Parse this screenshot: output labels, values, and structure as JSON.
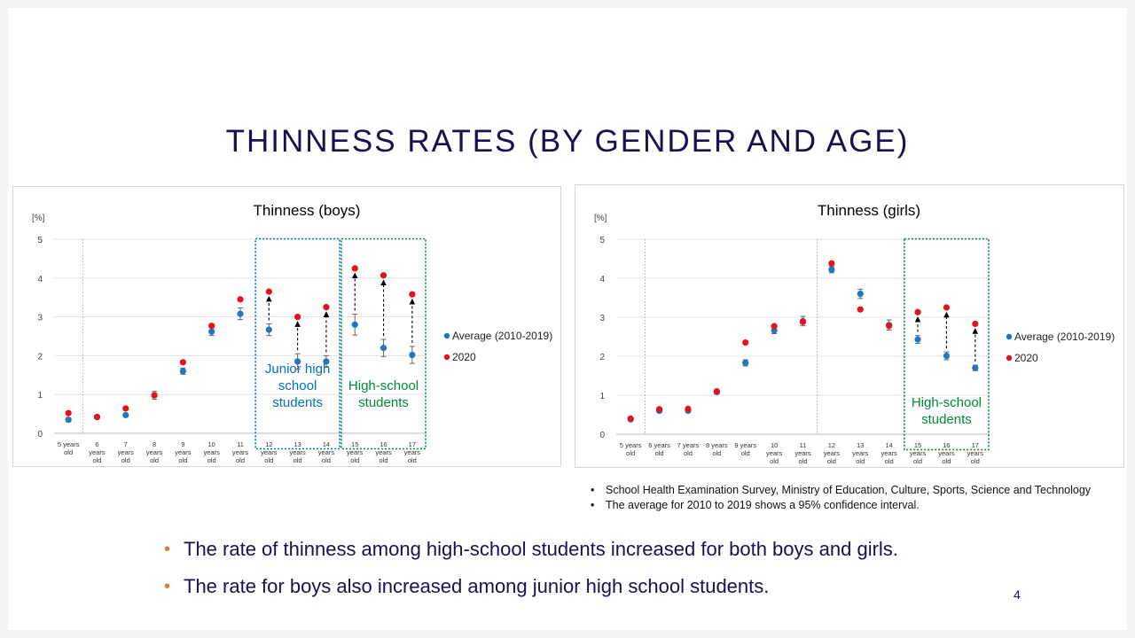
{
  "slide": {
    "title": "THINNESS RATES (BY GENDER AND AGE)",
    "notes": [
      "School Health Examination Survey, Ministry of Education, Culture, Sports, Science and Technology",
      "The average for 2010 to 2019 shows a 95% confidence interval."
    ],
    "bullets": [
      "The rate of thinness among high-school students increased for both boys and girls.",
      "The rate for boys also increased among junior high school students."
    ],
    "page_number": "4",
    "colors": {
      "title": "#1a1050",
      "average": "#1f77c4",
      "y2020": "#e8101a",
      "junior_box": "#0070c0",
      "high_box": "#00883a",
      "bullet": "#e07b39"
    }
  },
  "chart_data": [
    {
      "type": "scatter",
      "title": "Thinness (boys)",
      "ylabel": "[%]",
      "ylim": [
        0,
        5
      ],
      "yticks": [
        "0",
        "1",
        "2",
        "3",
        "4",
        "5"
      ],
      "categories": [
        [
          "5 years",
          "old"
        ],
        [
          "6",
          "years",
          "old"
        ],
        [
          "7",
          "years",
          "old"
        ],
        [
          "8",
          "years",
          "old"
        ],
        [
          "9",
          "years",
          "old"
        ],
        [
          "10",
          "years",
          "old"
        ],
        [
          "11",
          "years",
          "old"
        ],
        [
          "12",
          "years",
          "old"
        ],
        [
          "13",
          "years",
          "old"
        ],
        [
          "14",
          "years",
          "old"
        ],
        [
          "15",
          "years",
          "old"
        ],
        [
          "16",
          "years",
          "old"
        ],
        [
          "17",
          "years",
          "old"
        ]
      ],
      "series": [
        {
          "name": "Average (2010-2019)",
          "color": "#1f77c4",
          "values": [
            0.35,
            0.42,
            0.47,
            0.98,
            1.6,
            2.62,
            3.08,
            2.67,
            1.85,
            1.85,
            2.8,
            2.2,
            2.02
          ],
          "ci": [
            0.05,
            0.04,
            0.04,
            0.1,
            0.08,
            0.1,
            0.15,
            0.15,
            0.2,
            0.15,
            0.27,
            0.22,
            0.22
          ]
        },
        {
          "name": "2020",
          "color": "#e8101a",
          "values": [
            0.52,
            0.42,
            0.64,
            0.98,
            1.83,
            2.77,
            3.45,
            3.65,
            3.0,
            3.25,
            4.25,
            4.07,
            3.58
          ]
        }
      ],
      "arrows": [
        7,
        8,
        9,
        10,
        11,
        12
      ],
      "boxes": [
        {
          "label": [
            "Junior high",
            "school",
            "students"
          ],
          "from": 7,
          "to": 9,
          "color": "#0070c0"
        },
        {
          "label": [
            "High-school",
            "students"
          ],
          "from": 10,
          "to": 12,
          "color": "#00883a"
        }
      ],
      "divider_after": 0,
      "legend": "right"
    },
    {
      "type": "scatter",
      "title": "Thinness (girls)",
      "ylabel": "[%]",
      "ylim": [
        0,
        5
      ],
      "yticks": [
        "0",
        "1",
        "2",
        "3",
        "4",
        "5"
      ],
      "categories": [
        [
          "5 years",
          "old"
        ],
        [
          "6 years",
          "old"
        ],
        [
          "7 years",
          "old"
        ],
        [
          "8 years",
          "old"
        ],
        [
          "9 years",
          "old"
        ],
        [
          "10",
          "years",
          "old"
        ],
        [
          "11",
          "years",
          "old"
        ],
        [
          "12",
          "years",
          "old"
        ],
        [
          "13",
          "years",
          "old"
        ],
        [
          "14",
          "years",
          "old"
        ],
        [
          "15",
          "years",
          "old"
        ],
        [
          "16",
          "years",
          "old"
        ],
        [
          "17",
          "years",
          "old"
        ]
      ],
      "series": [
        {
          "name": "Average (2010-2019)",
          "color": "#1f77c4",
          "values": [
            0.38,
            0.6,
            0.6,
            1.08,
            1.83,
            2.66,
            2.9,
            4.22,
            3.6,
            2.8,
            2.43,
            2.01,
            1.7
          ],
          "ci": [
            0.03,
            0.04,
            0.04,
            0.05,
            0.08,
            0.08,
            0.12,
            0.08,
            0.12,
            0.13,
            0.1,
            0.1,
            0.07
          ]
        },
        {
          "name": "2020",
          "color": "#e8101a",
          "values": [
            0.4,
            0.64,
            0.65,
            1.1,
            2.35,
            2.77,
            2.88,
            4.38,
            3.2,
            2.78,
            3.13,
            3.25,
            2.83
          ]
        }
      ],
      "arrows": [
        10,
        11,
        12
      ],
      "boxes": [
        {
          "label": [
            "High-school",
            "students"
          ],
          "from": 10,
          "to": 12,
          "color": "#00883a"
        }
      ],
      "divider_after": [
        0,
        6
      ],
      "legend": "right"
    }
  ]
}
